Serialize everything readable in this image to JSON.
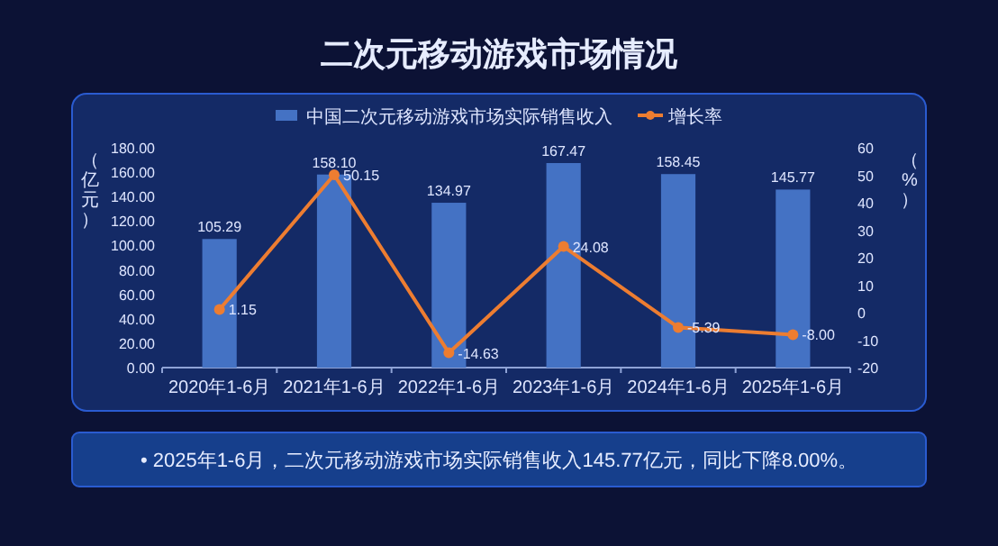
{
  "chart_data": {
    "type": "bar",
    "title": "二次元移动游戏市场情况",
    "categories": [
      "2020年1-6月",
      "2021年1-6月",
      "2022年1-6月",
      "2023年1-6月",
      "2024年1-6月",
      "2025年1-6月"
    ],
    "series": [
      {
        "name": "中国二次元移动游戏市场实际销售收入",
        "color": "#4472c4",
        "values": [
          105.29,
          158.1,
          134.97,
          167.47,
          158.45,
          145.77
        ],
        "value_labels": [
          "105.29",
          "158.10",
          "134.97",
          "167.47",
          "158.45",
          "145.77"
        ]
      },
      {
        "name": "增长率",
        "type": "line",
        "axis": "y2",
        "color": "#ed7d31",
        "marker": "circle",
        "values": [
          1.15,
          50.15,
          -14.63,
          24.08,
          -5.39,
          -8.0
        ],
        "value_labels": [
          "1.15",
          "50.15",
          "-14.63",
          "24.08",
          "-5.39",
          "-8.00"
        ]
      }
    ],
    "ylabel": "（亿元）",
    "y2label": "（%）",
    "ylim": [
      0,
      180
    ],
    "yticks": [
      {
        "value": 0,
        "label": "0.00"
      },
      {
        "value": 20,
        "label": "20.00"
      },
      {
        "value": 40,
        "label": "40.00"
      },
      {
        "value": 60,
        "label": "60.00"
      },
      {
        "value": 80,
        "label": "80.00"
      },
      {
        "value": 100,
        "label": "100.00"
      },
      {
        "value": 120,
        "label": "120.00"
      },
      {
        "value": 140,
        "label": "140.00"
      },
      {
        "value": 160,
        "label": "160.00"
      },
      {
        "value": 180,
        "label": "180.00"
      }
    ],
    "y2lim": [
      -20,
      60
    ],
    "y2ticks": [
      -20,
      -10,
      0,
      10,
      20,
      30,
      40,
      50,
      60
    ],
    "legend": "top",
    "grid": false,
    "annotations": [
      "• 2025年1-6月，二次元移动游戏市场实际销售收入145.77亿元，同比下降8.00%。"
    ]
  }
}
